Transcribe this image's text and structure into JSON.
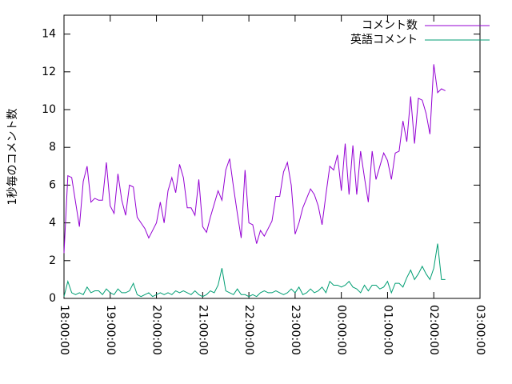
{
  "chart_data": {
    "type": "line",
    "ylabel": "1秒毎のコメント数",
    "x": [
      "18:00:00",
      "18:05:00",
      "18:10:00",
      "18:15:00",
      "18:20:00",
      "18:25:00",
      "18:30:00",
      "18:35:00",
      "18:40:00",
      "18:45:00",
      "18:50:00",
      "18:55:00",
      "19:00:00",
      "19:05:00",
      "19:10:00",
      "19:15:00",
      "19:20:00",
      "19:25:00",
      "19:30:00",
      "19:35:00",
      "19:40:00",
      "19:45:00",
      "19:50:00",
      "19:55:00",
      "20:00:00",
      "20:05:00",
      "20:10:00",
      "20:15:00",
      "20:20:00",
      "20:25:00",
      "20:30:00",
      "20:35:00",
      "20:40:00",
      "20:45:00",
      "20:50:00",
      "20:55:00",
      "21:00:00",
      "21:05:00",
      "21:10:00",
      "21:15:00",
      "21:20:00",
      "21:25:00",
      "21:30:00",
      "21:35:00",
      "21:40:00",
      "21:45:00",
      "21:50:00",
      "21:55:00",
      "22:00:00",
      "22:05:00",
      "22:10:00",
      "22:15:00",
      "22:20:00",
      "22:25:00",
      "22:30:00",
      "22:35:00",
      "22:40:00",
      "22:45:00",
      "22:50:00",
      "22:55:00",
      "23:00:00",
      "23:05:00",
      "23:10:00",
      "23:15:00",
      "23:20:00",
      "23:25:00",
      "23:30:00",
      "23:35:00",
      "23:40:00",
      "23:45:00",
      "23:50:00",
      "23:55:00",
      "00:00:00",
      "00:05:00",
      "00:10:00",
      "00:15:00",
      "00:20:00",
      "00:25:00",
      "00:30:00",
      "00:35:00",
      "00:40:00",
      "00:45:00",
      "00:50:00",
      "00:55:00",
      "01:00:00",
      "01:05:00",
      "01:10:00",
      "01:15:00",
      "01:20:00",
      "01:25:00",
      "01:30:00",
      "01:35:00",
      "01:40:00",
      "01:45:00",
      "01:50:00",
      "01:55:00",
      "02:00:00",
      "02:05:00",
      "02:10:00",
      "02:15:00"
    ],
    "series": [
      {
        "name": "コメント数",
        "color": "#9400d3",
        "values": [
          2.4,
          6.5,
          6.4,
          5.1,
          3.8,
          6.2,
          7.0,
          5.1,
          5.3,
          5.2,
          5.2,
          7.2,
          4.9,
          4.5,
          6.6,
          5.2,
          4.4,
          6.0,
          5.9,
          4.3,
          4.0,
          3.7,
          3.2,
          3.6,
          4.0,
          5.1,
          4.0,
          5.7,
          6.4,
          5.6,
          7.1,
          6.4,
          4.8,
          4.8,
          4.4,
          6.3,
          3.8,
          3.5,
          4.3,
          5.0,
          5.7,
          5.2,
          6.8,
          7.4,
          5.9,
          4.5,
          3.2,
          6.8,
          4.0,
          3.9,
          2.9,
          3.6,
          3.3,
          3.7,
          4.1,
          5.4,
          5.4,
          6.7,
          7.2,
          6.0,
          3.4,
          4.0,
          4.8,
          5.3,
          5.8,
          5.5,
          4.9,
          3.9,
          5.5,
          7.0,
          6.8,
          7.6,
          5.7,
          8.2,
          5.5,
          8.1,
          5.5,
          7.8,
          6.4,
          5.1,
          7.8,
          6.3,
          7.0,
          7.7,
          7.3,
          6.3,
          7.7,
          7.8,
          9.4,
          8.3,
          10.7,
          8.2,
          10.6,
          10.5,
          9.8,
          8.7,
          12.4,
          10.9,
          11.1,
          11.0
        ]
      },
      {
        "name": "英語コメント",
        "color": "#009e73",
        "values": [
          0.1,
          0.9,
          0.3,
          0.2,
          0.3,
          0.2,
          0.6,
          0.3,
          0.4,
          0.4,
          0.2,
          0.5,
          0.3,
          0.2,
          0.5,
          0.3,
          0.3,
          0.4,
          0.8,
          0.2,
          0.1,
          0.2,
          0.3,
          0.1,
          0.2,
          0.3,
          0.2,
          0.3,
          0.2,
          0.4,
          0.3,
          0.4,
          0.3,
          0.2,
          0.4,
          0.2,
          0.1,
          0.2,
          0.4,
          0.3,
          0.7,
          1.6,
          0.4,
          0.3,
          0.2,
          0.5,
          0.2,
          0.2,
          0.1,
          0.2,
          0.1,
          0.3,
          0.4,
          0.3,
          0.3,
          0.4,
          0.3,
          0.2,
          0.3,
          0.5,
          0.3,
          0.6,
          0.2,
          0.3,
          0.5,
          0.3,
          0.4,
          0.6,
          0.3,
          0.9,
          0.7,
          0.7,
          0.6,
          0.7,
          0.9,
          0.6,
          0.5,
          0.3,
          0.7,
          0.4,
          0.7,
          0.7,
          0.5,
          0.6,
          0.9,
          0.3,
          0.8,
          0.8,
          0.6,
          1.1,
          1.5,
          1.0,
          1.3,
          1.7,
          1.3,
          1.0,
          1.6,
          2.9,
          1.0,
          1.0
        ]
      }
    ],
    "xlim": [
      "18:00:00",
      "03:00:00"
    ],
    "xticks": [
      "18:00:00",
      "19:00:00",
      "20:00:00",
      "21:00:00",
      "22:00:00",
      "23:00:00",
      "00:00:00",
      "01:00:00",
      "02:00:00",
      "03:00:00"
    ],
    "ylim": [
      0,
      15
    ],
    "yticks": [
      0,
      2,
      4,
      6,
      8,
      10,
      12,
      14
    ],
    "legend": "top-right"
  }
}
